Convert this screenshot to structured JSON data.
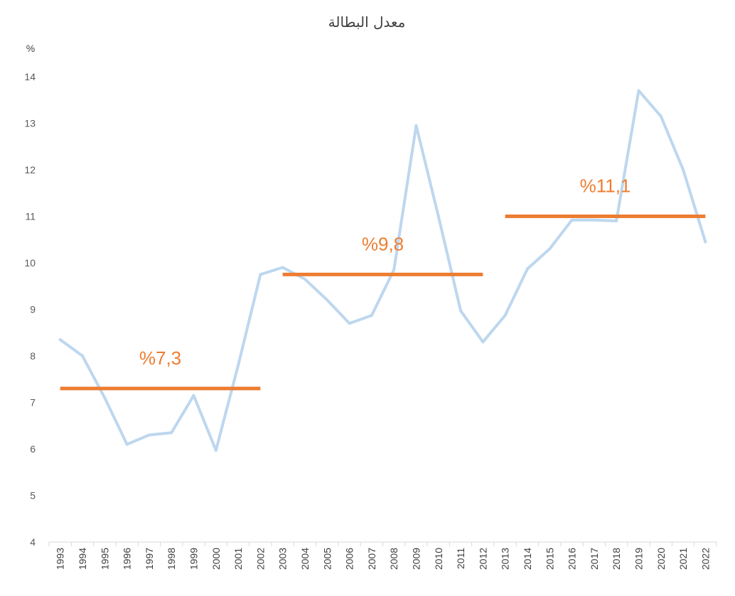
{
  "chart_data": {
    "type": "line",
    "title": "معدل البطالة",
    "ylabel": "%",
    "xlabel": "",
    "ylim": [
      4,
      14
    ],
    "yticks": [
      4,
      5,
      6,
      7,
      8,
      9,
      10,
      11,
      12,
      13,
      14
    ],
    "grid": false,
    "x": [
      "1993",
      "1994",
      "1995",
      "1996",
      "1997",
      "1998",
      "1999",
      "2000",
      "2001",
      "2002",
      "2003",
      "2004",
      "2005",
      "2006",
      "2007",
      "2008",
      "2009",
      "2010",
      "2011",
      "2012",
      "2013",
      "2014",
      "2015",
      "2016",
      "2017",
      "2018",
      "2019",
      "2020",
      "2021",
      "2022"
    ],
    "series": [
      {
        "color": "#bdd7ee",
        "values": [
          8.35,
          8.0,
          7.1,
          6.1,
          6.3,
          6.35,
          7.15,
          5.97,
          7.8,
          9.75,
          9.9,
          9.65,
          9.2,
          8.7,
          8.87,
          9.85,
          12.95,
          11.0,
          8.97,
          8.3,
          8.87,
          9.87,
          10.3,
          10.92,
          10.92,
          10.9,
          13.7,
          13.15,
          12.0,
          10.45
        ]
      }
    ],
    "averages": [
      {
        "label": "%7,3",
        "value": 7.3,
        "from": "1993",
        "to": "2002",
        "color": "#ed7d31"
      },
      {
        "label": "%9,8",
        "value": 9.75,
        "from": "2003",
        "to": "2012",
        "color": "#ed7d31"
      },
      {
        "label": "%11,1",
        "value": 11.0,
        "from": "2013",
        "to": "2022",
        "color": "#ed7d31"
      }
    ]
  }
}
